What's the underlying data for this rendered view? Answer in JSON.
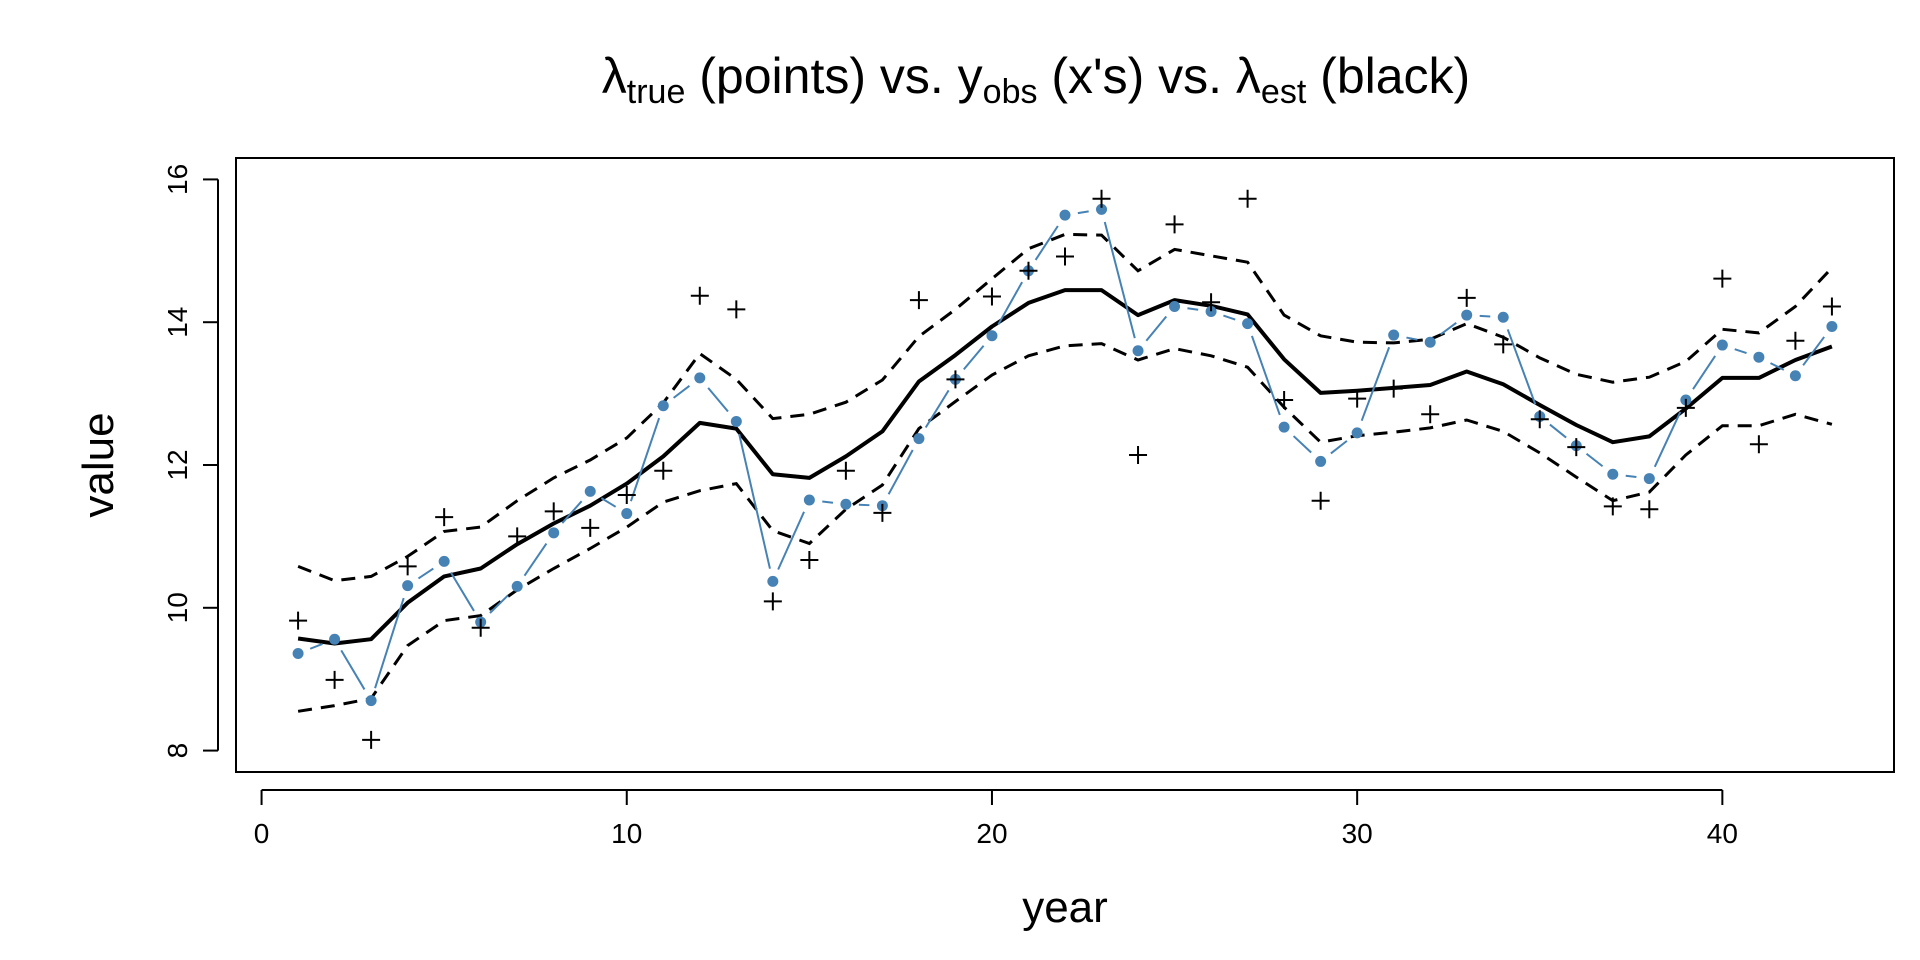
{
  "chart_data": {
    "type": "line",
    "title": {
      "lambda": "λ",
      "true_sub": "true",
      "points_part": " (points) vs. y",
      "obs_sub": "obs",
      "xs_part": " (x's) vs. ",
      "lambda2": "λ",
      "est_sub": "est",
      "black_part": " (black)"
    },
    "xlabel": "year",
    "ylabel": "value",
    "xlim": [
      -0.7,
      44.7
    ],
    "ylim": [
      7.7,
      16.3
    ],
    "xticks": [
      0,
      10,
      20,
      30,
      40
    ],
    "yticks": [
      8,
      10,
      12,
      14,
      16
    ],
    "grid": false,
    "colors": {
      "true": "#4682b4",
      "est": "#000000",
      "obs": "#000000"
    },
    "x": [
      1,
      2,
      3,
      4,
      5,
      6,
      7,
      8,
      9,
      10,
      11,
      12,
      13,
      14,
      15,
      16,
      17,
      18,
      19,
      20,
      21,
      22,
      23,
      24,
      25,
      26,
      27,
      28,
      29,
      30,
      31,
      32,
      33,
      34,
      35,
      36,
      37,
      38,
      39,
      40,
      41,
      42,
      43
    ],
    "series": [
      {
        "key": "true",
        "style": "points-connected",
        "values": [
          9.36,
          9.56,
          8.7,
          10.31,
          10.65,
          9.8,
          10.3,
          11.05,
          11.63,
          11.32,
          12.83,
          13.22,
          12.61,
          10.37,
          11.51,
          11.45,
          11.43,
          12.37,
          13.2,
          13.81,
          14.72,
          15.5,
          15.58,
          13.6,
          14.22,
          14.15,
          13.98,
          12.53,
          12.05,
          12.45,
          13.82,
          13.72,
          14.1,
          14.07,
          12.68,
          12.27,
          11.87,
          11.81,
          12.91,
          13.68,
          13.51,
          13.25,
          13.94
        ]
      },
      {
        "key": "obs",
        "style": "plus",
        "values": [
          9.82,
          8.99,
          8.15,
          10.58,
          11.27,
          9.72,
          11.0,
          11.35,
          11.12,
          11.58,
          11.92,
          14.37,
          14.18,
          10.09,
          10.67,
          11.92,
          11.33,
          14.31,
          13.2,
          14.36,
          14.72,
          14.92,
          15.73,
          12.14,
          15.37,
          14.28,
          15.73,
          12.91,
          11.5,
          12.93,
          13.07,
          12.71,
          14.34,
          13.69,
          12.64,
          12.25,
          11.42,
          11.38,
          12.8,
          14.61,
          12.29,
          13.74,
          14.22
        ]
      },
      {
        "key": "est",
        "style": "solid-thick",
        "values": [
          9.57,
          9.5,
          9.56,
          10.07,
          10.44,
          10.55,
          10.89,
          11.18,
          11.43,
          11.74,
          12.12,
          12.59,
          12.51,
          11.87,
          11.82,
          12.12,
          12.47,
          13.17,
          13.54,
          13.94,
          14.27,
          14.45,
          14.45,
          14.1,
          14.31,
          14.23,
          14.11,
          13.48,
          13.01,
          13.04,
          13.08,
          13.12,
          13.31,
          13.13,
          12.84,
          12.56,
          12.32,
          12.4,
          12.79,
          13.22,
          13.22,
          13.47,
          13.66
        ]
      },
      {
        "key": "upper",
        "style": "dashed",
        "values": [
          10.58,
          10.38,
          10.44,
          10.72,
          11.07,
          11.13,
          11.5,
          11.82,
          12.07,
          12.38,
          12.87,
          13.56,
          13.2,
          12.65,
          12.71,
          12.88,
          13.19,
          13.8,
          14.18,
          14.61,
          15.03,
          15.23,
          15.22,
          14.72,
          15.02,
          14.93,
          14.84,
          14.1,
          13.81,
          13.72,
          13.71,
          13.76,
          13.98,
          13.79,
          13.5,
          13.27,
          13.16,
          13.23,
          13.45,
          13.9,
          13.85,
          14.22,
          14.76
        ]
      },
      {
        "key": "lower",
        "style": "dashed",
        "values": [
          8.55,
          8.63,
          8.73,
          9.47,
          9.82,
          9.89,
          10.25,
          10.55,
          10.83,
          11.13,
          11.48,
          11.64,
          11.74,
          11.08,
          10.9,
          11.38,
          11.72,
          12.51,
          12.89,
          13.26,
          13.53,
          13.67,
          13.7,
          13.47,
          13.63,
          13.53,
          13.37,
          12.81,
          12.32,
          12.41,
          12.46,
          12.52,
          12.63,
          12.47,
          12.17,
          11.83,
          11.5,
          11.62,
          12.14,
          12.55,
          12.55,
          12.71,
          12.57
        ]
      }
    ]
  }
}
